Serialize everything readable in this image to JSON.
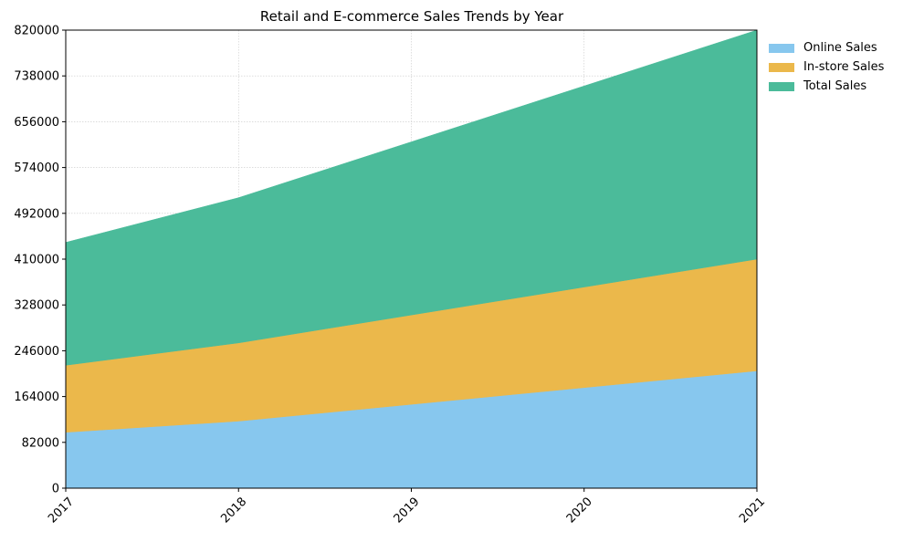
{
  "chart_data": {
    "type": "area",
    "stacked": true,
    "title": "Retail and E-commerce Sales Trends by Year",
    "xlabel": "",
    "ylabel": "",
    "x": [
      "2017",
      "2018",
      "2019",
      "2020",
      "2021"
    ],
    "ylim": [
      0,
      820000
    ],
    "yticks": [
      "0",
      "82000",
      "164000",
      "246000",
      "328000",
      "410000",
      "492000",
      "574000",
      "656000",
      "738000",
      "820000"
    ],
    "grid": true,
    "legend_position": "outside-top-right",
    "series": [
      {
        "name": "Online Sales",
        "color": "#87c7ee",
        "values": [
          100000,
          120000,
          150000,
          180000,
          210000
        ]
      },
      {
        "name": "In-store Sales",
        "color": "#ebb84b",
        "values": [
          120000,
          140000,
          160000,
          180000,
          200000
        ]
      },
      {
        "name": "Total Sales",
        "color": "#4bbb9a",
        "values": [
          220000,
          260000,
          310000,
          360000,
          410000
        ]
      }
    ]
  }
}
